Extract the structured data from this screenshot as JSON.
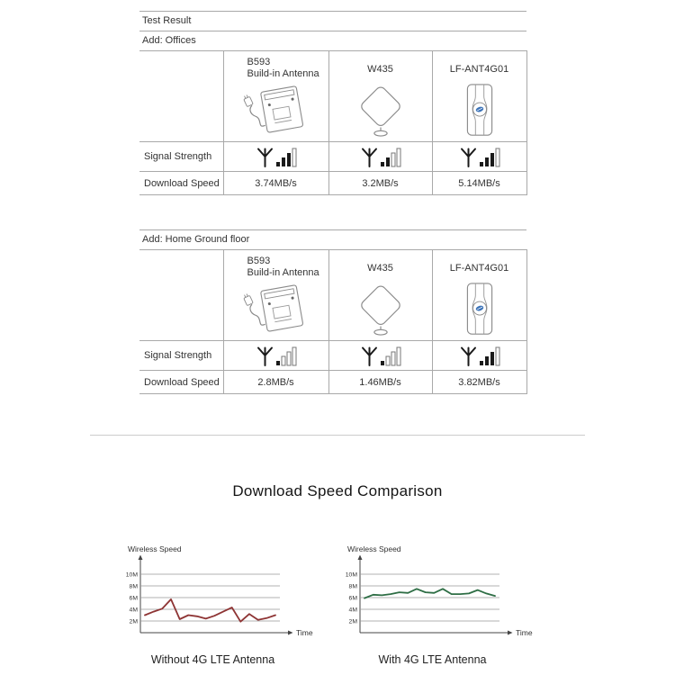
{
  "header": {
    "test_result": "Test Result"
  },
  "row_labels": {
    "signal": "Signal Strength",
    "download": "Download Speed"
  },
  "signal_total": 4,
  "products": [
    {
      "name_line1": "B593",
      "name_line2": "Build-in Antenna",
      "illustration": "router-with-cable"
    },
    {
      "name_line1": "W435",
      "name_line2": "",
      "illustration": "diamond-desk-antenna"
    },
    {
      "name_line1": "LF-ANT4G01",
      "name_line2": "",
      "illustration": "panel-antenna-with-blue-logo"
    }
  ],
  "colors": {
    "logo_blue": "#3a72b8"
  },
  "tables": [
    {
      "location": "Add: Offices",
      "signal_bars": [
        3,
        2,
        3
      ],
      "download_speeds": [
        "3.74MB/s",
        "3.2MB/s",
        "5.14MB/s"
      ]
    },
    {
      "location": "Add: Home Ground floor",
      "signal_bars": [
        1,
        1,
        3
      ],
      "download_speeds": [
        "2.8MB/s",
        "1.46MB/s",
        "3.82MB/s"
      ]
    }
  ],
  "comparison_title": "Download Speed Comparison",
  "chart_data": [
    {
      "type": "line",
      "ylabel": "Wireless Speed",
      "xlabel": "Time",
      "caption": "Without 4G LTE Antenna",
      "yticks": [
        "10M",
        "8M",
        "6M",
        "4M",
        "2M"
      ],
      "ylim": [
        0,
        12
      ],
      "grid": true,
      "legend": "none",
      "line_color": "#8e3434",
      "values": [
        3.0,
        3.6,
        4.1,
        5.7,
        2.3,
        3.0,
        2.8,
        2.4,
        2.9,
        3.6,
        4.3,
        1.9,
        3.2,
        2.2,
        2.5,
        3.0
      ]
    },
    {
      "type": "line",
      "ylabel": "Wireless Speed",
      "xlabel": "Time",
      "caption": "With 4G LTE Antenna",
      "yticks": [
        "10M",
        "8M",
        "6M",
        "4M",
        "2M"
      ],
      "ylim": [
        0,
        12
      ],
      "grid": true,
      "legend": "none",
      "line_color": "#2e6e45",
      "values": [
        5.9,
        6.5,
        6.4,
        6.6,
        6.9,
        6.8,
        7.5,
        6.9,
        6.8,
        7.5,
        6.6,
        6.6,
        6.7,
        7.3,
        6.7,
        6.3
      ]
    }
  ]
}
